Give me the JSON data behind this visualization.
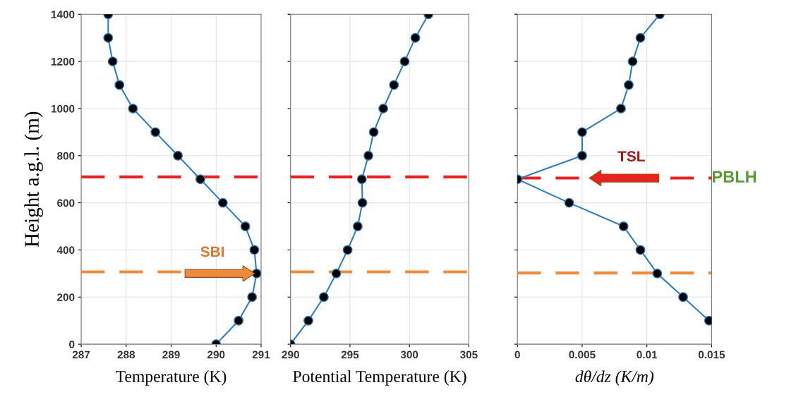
{
  "chart_data": [
    {
      "type": "line",
      "xlabel": "Temperature (K)",
      "ylabel": "Height a.g.l. (m)",
      "xlim": [
        287,
        291
      ],
      "xticks": [
        287,
        288,
        289,
        290,
        291
      ],
      "ylim": [
        0,
        1400
      ],
      "yticks": [
        0,
        200,
        400,
        600,
        800,
        1000,
        1200,
        1400
      ],
      "grid": true,
      "marker": "circle",
      "line_style": "solid",
      "series": [
        {
          "color": "#2f7dbf",
          "x": [
            290.0,
            290.5,
            290.8,
            290.9,
            290.85,
            290.65,
            290.15,
            289.65,
            289.15,
            288.65,
            288.15,
            287.85,
            287.7,
            287.6,
            287.6
          ],
          "values": [
            0,
            100,
            200,
            300,
            400,
            500,
            600,
            700,
            800,
            900,
            1000,
            1100,
            1200,
            1300,
            1400
          ]
        }
      ],
      "ref_lines": [
        {
          "axis": "y",
          "value": 710,
          "color": "#e8231f",
          "line_style": "dashed"
        },
        {
          "axis": "y",
          "value": 307,
          "color": "#ee8a3c",
          "line_style": "dashed"
        }
      ],
      "annotations": [
        {
          "text": "SBI",
          "x": 290.9,
          "y": 300
        }
      ]
    },
    {
      "type": "line",
      "xlabel": "Potential Temperature (K)",
      "xlim": [
        290,
        305
      ],
      "xticks": [
        290,
        295,
        300,
        305
      ],
      "ylim": [
        0,
        1400
      ],
      "yticks": [
        0,
        200,
        400,
        600,
        800,
        1000,
        1200,
        1400
      ],
      "tick_labels": "x",
      "grid": true,
      "marker": "circle",
      "line_style": "solid",
      "series": [
        {
          "color": "#2f7dbf",
          "x": [
            290.0,
            291.5,
            292.8,
            293.85,
            294.8,
            295.65,
            296.05,
            296.0,
            296.55,
            297.0,
            297.8,
            298.7,
            299.6,
            300.5,
            301.6
          ],
          "values": [
            0,
            100,
            200,
            300,
            400,
            500,
            600,
            700,
            800,
            900,
            1000,
            1100,
            1200,
            1300,
            1400
          ]
        }
      ],
      "ref_lines": [
        {
          "axis": "y",
          "value": 710,
          "color": "#e8231f",
          "line_style": "dashed"
        },
        {
          "axis": "y",
          "value": 307,
          "color": "#ee8a3c",
          "line_style": "dashed"
        }
      ]
    },
    {
      "type": "line",
      "xlabel": "dθ/dz (K/m)",
      "xlim": [
        0,
        0.015
      ],
      "xticks": [
        0,
        0.005,
        0.01,
        0.015
      ],
      "ylim": [
        0,
        1400
      ],
      "yticks": [
        0,
        200,
        400,
        600,
        800,
        1000,
        1200,
        1400
      ],
      "tick_labels": "x",
      "grid": true,
      "marker": "circle",
      "line_style": "solid",
      "series": [
        {
          "color": "#2f7dbf",
          "x": [
            0.0148,
            0.0128,
            0.0108,
            0.0095,
            0.0082,
            0.004,
            0,
            0.005,
            0.005,
            0.008,
            0.0086,
            0.0089,
            0.0095,
            0.011
          ],
          "values": [
            100,
            200,
            300,
            400,
            500,
            600,
            700,
            800,
            900,
            1000,
            1100,
            1200,
            1300,
            1400
          ]
        }
      ],
      "ref_lines": [
        {
          "axis": "y",
          "value": 705,
          "color": "#e8231f",
          "line_style": "dashed",
          "label": "PBLH"
        },
        {
          "axis": "y",
          "value": 302,
          "color": "#ee8a3c",
          "line_style": "dashed"
        }
      ],
      "annotations": [
        {
          "text": "TSL",
          "x": 0.0054,
          "y": 705
        }
      ]
    }
  ]
}
